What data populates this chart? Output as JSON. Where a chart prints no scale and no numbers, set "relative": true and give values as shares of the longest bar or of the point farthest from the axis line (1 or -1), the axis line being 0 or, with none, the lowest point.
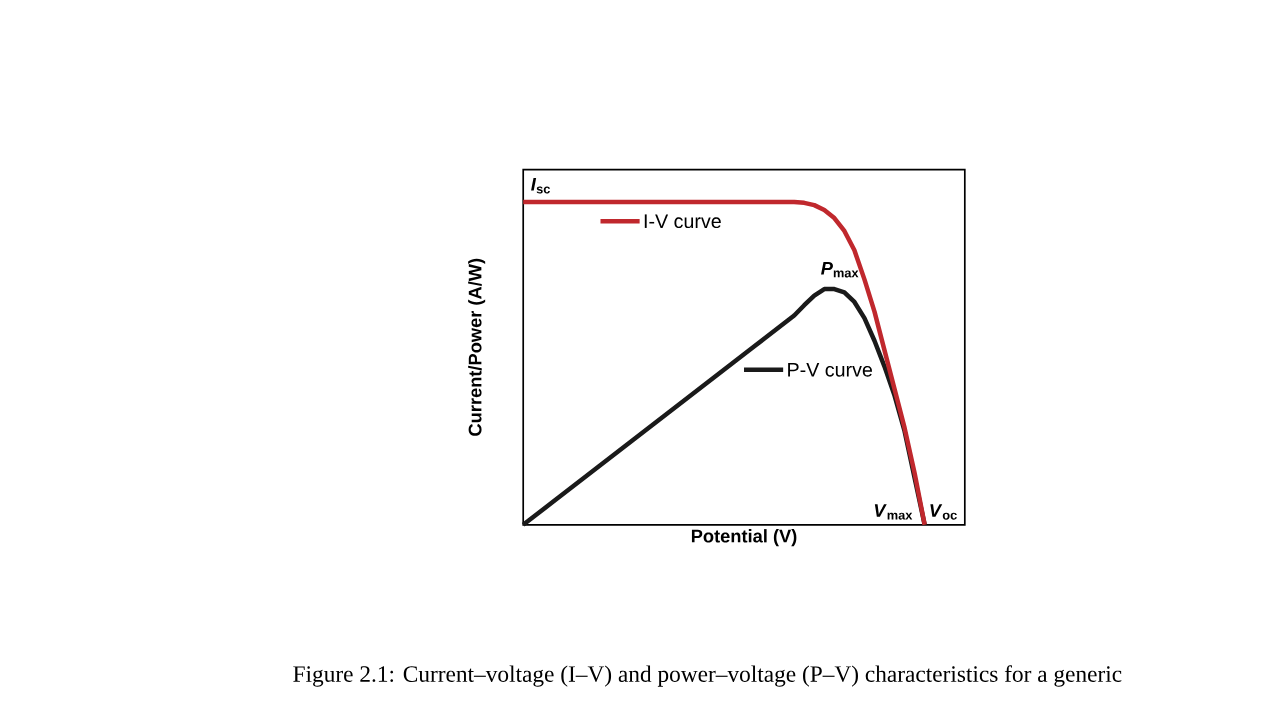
{
  "chart_data": {
    "type": "line",
    "relative": true,
    "legend": "top left",
    "xlabel": "Potential (V)",
    "ylabel": "Current/Power (A/W)",
    "categories": [
      null,
      null,
      null,
      null,
      null,
      null,
      null,
      null,
      null,
      null,
      null,
      null,
      null,
      null,
      null,
      null,
      null,
      null,
      null,
      null,
      null,
      null,
      null,
      null,
      null,
      null,
      null,
      null,
      null,
      null,
      null,
      null,
      null,
      null,
      null,
      null,
      null,
      null,
      null,
      null,
      null
    ],
    "series": [
      {
        "name": "I-V curve",
        "color": "#c0282d",
        "values": [
          1,
          1,
          1,
          1,
          1,
          1,
          1,
          1,
          1,
          1,
          1,
          1,
          1,
          1,
          1,
          1,
          1,
          1,
          1,
          1,
          1,
          1,
          1,
          1,
          1,
          1,
          1,
          1,
          0.997,
          0.99,
          0.975,
          0.95,
          0.91,
          0.85,
          0.76,
          0.66,
          0.54,
          0.42,
          0.3,
          0.16,
          0
        ]
      },
      {
        "name": "P-V curve",
        "color": "#1a1a1a",
        "values": [
          0,
          0.024,
          0.048,
          0.072,
          0.096,
          0.12,
          0.144,
          0.168,
          0.192,
          0.216,
          0.24,
          0.264,
          0.288,
          0.312,
          0.336,
          0.36,
          0.384,
          0.408,
          0.432,
          0.456,
          0.48,
          0.504,
          0.528,
          0.552,
          0.576,
          0.6,
          0.624,
          0.648,
          0.68,
          0.71,
          0.73,
          0.73,
          0.72,
          0.69,
          0.64,
          0.57,
          0.49,
          0.4,
          0.29,
          null,
          0
        ]
      }
    ],
    "annotations": [
      "*I*$_{sc}$",
      "*P*$_{max}$",
      "*V*$_{max}$",
      "*V*$_{oc}$",
      "Figure 2.1: Current–voltage (I–V) and power–voltage (P–V) characteristics for a generic"
    ]
  }
}
